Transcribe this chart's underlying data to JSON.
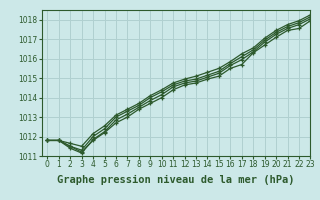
{
  "title": "Graphe pression niveau de la mer (hPa)",
  "background_color": "#cce8e8",
  "grid_color": "#b0d0d0",
  "line_color": "#2d5a2d",
  "xlim": [
    -0.5,
    23
  ],
  "ylim": [
    1011,
    1018.5
  ],
  "yticks": [
    1011,
    1012,
    1013,
    1014,
    1015,
    1016,
    1017,
    1018
  ],
  "xticks": [
    0,
    1,
    2,
    3,
    4,
    5,
    6,
    7,
    8,
    9,
    10,
    11,
    12,
    13,
    14,
    15,
    16,
    17,
    18,
    19,
    20,
    21,
    22,
    23
  ],
  "lines": [
    [
      1011.8,
      1011.8,
      1011.5,
      1011.2,
      1011.8,
      1012.2,
      1012.7,
      1013.0,
      1013.4,
      1013.7,
      1014.0,
      1014.4,
      1014.65,
      1014.75,
      1014.95,
      1015.1,
      1015.5,
      1015.7,
      1016.3,
      1016.7,
      1017.1,
      1017.45,
      1017.55,
      1017.95
    ],
    [
      1011.8,
      1011.8,
      1011.4,
      1011.15,
      1011.85,
      1012.25,
      1012.85,
      1013.15,
      1013.5,
      1013.85,
      1014.15,
      1014.55,
      1014.75,
      1014.85,
      1015.05,
      1015.25,
      1015.65,
      1015.95,
      1016.35,
      1016.85,
      1017.25,
      1017.55,
      1017.75,
      1018.05
    ],
    [
      1011.8,
      1011.8,
      1011.5,
      1011.3,
      1012.0,
      1012.4,
      1013.0,
      1013.3,
      1013.6,
      1014.0,
      1014.3,
      1014.65,
      1014.85,
      1014.95,
      1015.15,
      1015.35,
      1015.75,
      1016.1,
      1016.45,
      1016.95,
      1017.35,
      1017.65,
      1017.85,
      1018.15
    ],
    [
      1011.8,
      1011.8,
      1011.65,
      1011.5,
      1012.15,
      1012.55,
      1013.1,
      1013.4,
      1013.7,
      1014.1,
      1014.4,
      1014.75,
      1014.95,
      1015.1,
      1015.3,
      1015.5,
      1015.85,
      1016.25,
      1016.55,
      1017.05,
      1017.45,
      1017.75,
      1017.95,
      1018.25
    ]
  ],
  "marker": "+",
  "markersize": 3.5,
  "linewidth": 0.9,
  "title_fontsize": 7.5,
  "tick_fontsize": 5.5
}
